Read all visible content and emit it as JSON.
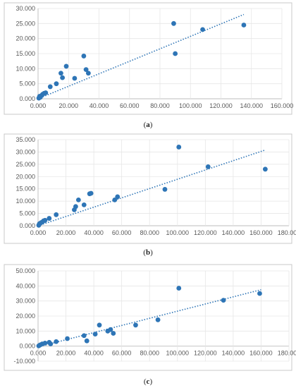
{
  "accent_color": "#2e75b6",
  "chart_data": [
    {
      "type": "scatter",
      "caption": "(a)",
      "xlim": [
        0,
        160000
      ],
      "ylim": [
        0,
        30000
      ],
      "x_ticks": [
        "0.000",
        "20.000",
        "40.000",
        "60.000",
        "80.000",
        "100.000",
        "120.000",
        "140.000",
        "160.000"
      ],
      "y_ticks": [
        "0.000",
        "5.000",
        "10.000",
        "15.000",
        "20.000",
        "25.000",
        "30.000"
      ],
      "grid": true,
      "trendline": {
        "style": "dotted linear",
        "from": [
          0,
          0
        ],
        "to": [
          135000,
          28000
        ]
      },
      "points": [
        [
          500,
          200
        ],
        [
          1000,
          800
        ],
        [
          1500,
          500
        ],
        [
          2000,
          1000
        ],
        [
          3000,
          1500
        ],
        [
          4000,
          1800
        ],
        [
          5000,
          2000
        ],
        [
          8000,
          4000
        ],
        [
          12000,
          5000
        ],
        [
          15000,
          8500
        ],
        [
          16000,
          7000
        ],
        [
          18500,
          10800
        ],
        [
          24000,
          6800
        ],
        [
          30000,
          14200
        ],
        [
          31500,
          9700
        ],
        [
          33000,
          8500
        ],
        [
          89000,
          25000
        ],
        [
          90000,
          15000
        ],
        [
          108000,
          23000
        ],
        [
          135000,
          24500
        ]
      ]
    },
    {
      "type": "scatter",
      "caption": "(b)",
      "xlim": [
        0,
        180000
      ],
      "ylim": [
        0,
        35000
      ],
      "x_ticks": [
        "0.000",
        "20.000",
        "40.000",
        "60.000",
        "80.000",
        "100.000",
        "120.000",
        "140.000",
        "160.000",
        "180.000"
      ],
      "y_ticks": [
        "0.000",
        "5.000",
        "10.000",
        "15.000",
        "20.000",
        "25.000",
        "30.000",
        "35.000"
      ],
      "grid": true,
      "trendline": {
        "style": "dotted linear",
        "from": [
          0,
          0
        ],
        "to": [
          163000,
          30800
        ]
      },
      "points": [
        [
          500,
          200
        ],
        [
          1000,
          800
        ],
        [
          2000,
          1200
        ],
        [
          3000,
          1500
        ],
        [
          4000,
          2000
        ],
        [
          5000,
          2200
        ],
        [
          8000,
          3000
        ],
        [
          13000,
          4500
        ],
        [
          26000,
          6500
        ],
        [
          27000,
          7800
        ],
        [
          29000,
          10500
        ],
        [
          33000,
          8500
        ],
        [
          37000,
          13000
        ],
        [
          38000,
          13200
        ],
        [
          55000,
          10500
        ],
        [
          57000,
          11800
        ],
        [
          91000,
          14800
        ],
        [
          101000,
          32000
        ],
        [
          122000,
          24000
        ],
        [
          163000,
          23000
        ]
      ]
    },
    {
      "type": "scatter",
      "caption": "(c)",
      "xlim": [
        0,
        180000
      ],
      "ylim": [
        -10000,
        50000
      ],
      "x_ticks": [
        "0.000",
        "20.000",
        "40.000",
        "60.000",
        "80.000",
        "100.000",
        "120.000",
        "140.000",
        "160.000",
        "180.000"
      ],
      "y_ticks": [
        "-10.000",
        "0.000",
        "10.000",
        "20.000",
        "30.000",
        "40.000",
        "50.000"
      ],
      "grid": true,
      "trendline": {
        "style": "dotted linear",
        "from": [
          0,
          -500
        ],
        "to": [
          160000,
          37500
        ]
      },
      "points": [
        [
          500,
          200
        ],
        [
          1500,
          800
        ],
        [
          3000,
          1500
        ],
        [
          5000,
          2000
        ],
        [
          8000,
          2500
        ],
        [
          9000,
          1500
        ],
        [
          13000,
          3000
        ],
        [
          21000,
          5000
        ],
        [
          33000,
          7000
        ],
        [
          35000,
          3500
        ],
        [
          41000,
          8000
        ],
        [
          44000,
          14000
        ],
        [
          50000,
          10000
        ],
        [
          52000,
          11000
        ],
        [
          54000,
          8500
        ],
        [
          70000,
          14000
        ],
        [
          86000,
          17500
        ],
        [
          101000,
          38500
        ],
        [
          133000,
          30500
        ],
        [
          159000,
          35000
        ]
      ]
    }
  ]
}
